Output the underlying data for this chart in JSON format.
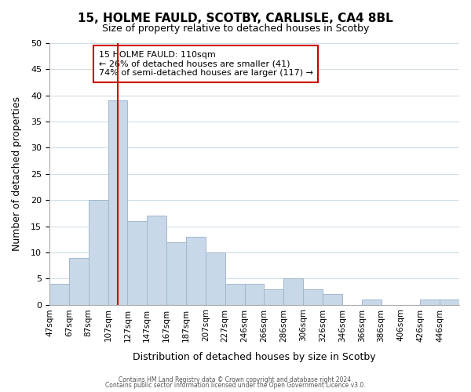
{
  "title1": "15, HOLME FAULD, SCOTBY, CARLISLE, CA4 8BL",
  "title2": "Size of property relative to detached houses in Scotby",
  "xlabel": "Distribution of detached houses by size in Scotby",
  "ylabel": "Number of detached properties",
  "bar_labels": [
    "47sqm",
    "67sqm",
    "87sqm",
    "107sqm",
    "127sqm",
    "147sqm",
    "167sqm",
    "187sqm",
    "207sqm",
    "227sqm",
    "246sqm",
    "266sqm",
    "286sqm",
    "306sqm",
    "326sqm",
    "346sqm",
    "366sqm",
    "386sqm",
    "406sqm",
    "426sqm",
    "446sqm"
  ],
  "bar_values": [
    4,
    9,
    20,
    39,
    16,
    17,
    12,
    13,
    10,
    4,
    4,
    3,
    5,
    3,
    2,
    0,
    1,
    0,
    0,
    1,
    1
  ],
  "bar_color": "#c8d8e8",
  "bar_edge_color": "#a0b8d0",
  "vline_x_index": 3,
  "vline_color": "#cc0000",
  "annotation_title": "15 HOLME FAULD: 110sqm",
  "annotation_line1": "← 26% of detached houses are smaller (41)",
  "annotation_line2": "74% of semi-detached houses are larger (117) →",
  "annotation_box_color": "#ffffff",
  "annotation_box_edge": "#cc0000",
  "ylim": [
    0,
    50
  ],
  "yticks": [
    0,
    5,
    10,
    15,
    20,
    25,
    30,
    35,
    40,
    45,
    50
  ],
  "footer1": "Contains HM Land Registry data © Crown copyright and database right 2024.",
  "footer2": "Contains public sector information licensed under the Open Government Licence v3.0.",
  "bg_color": "#ffffff",
  "grid_color": "#d0dde8"
}
